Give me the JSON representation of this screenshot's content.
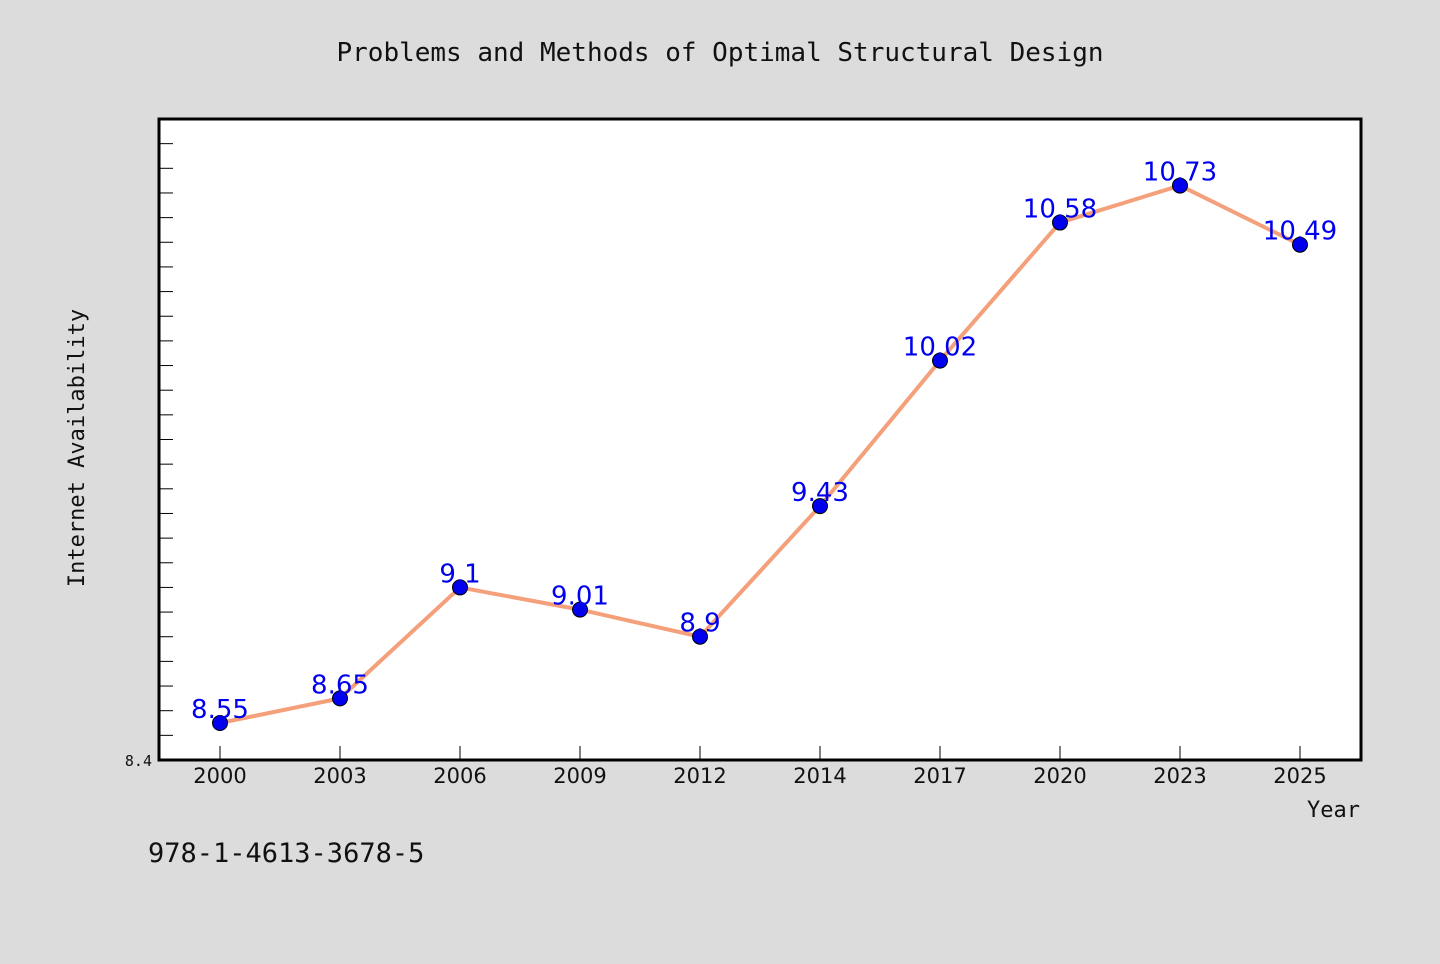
{
  "chart_data": {
    "type": "line",
    "title": "Problems and Methods of Optimal Structural Design",
    "xlabel": "Year",
    "ylabel": "Internet Availability",
    "categories": [
      "2000",
      "2003",
      "2006",
      "2009",
      "2012",
      "2014",
      "2017",
      "2020",
      "2023",
      "2025"
    ],
    "series": [
      {
        "values": [
          8.55,
          8.65,
          9.1,
          9.01,
          8.9,
          9.43,
          10.02,
          10.58,
          10.73,
          10.49
        ],
        "line_color": "#f4a07a",
        "marker_color": "#0000ee"
      }
    ],
    "data_labels": [
      "8.55",
      "8.65",
      "9.1",
      "9.01",
      "8.9",
      "9.43",
      "10.02",
      "10.58",
      "10.73",
      "10.49"
    ],
    "ylim": [
      8.4,
      11.0
    ],
    "ytick_labels": [
      "8.4"
    ],
    "grid": false,
    "legend": false
  },
  "footer": {
    "isbn": "978-1-4613-3678-5"
  }
}
